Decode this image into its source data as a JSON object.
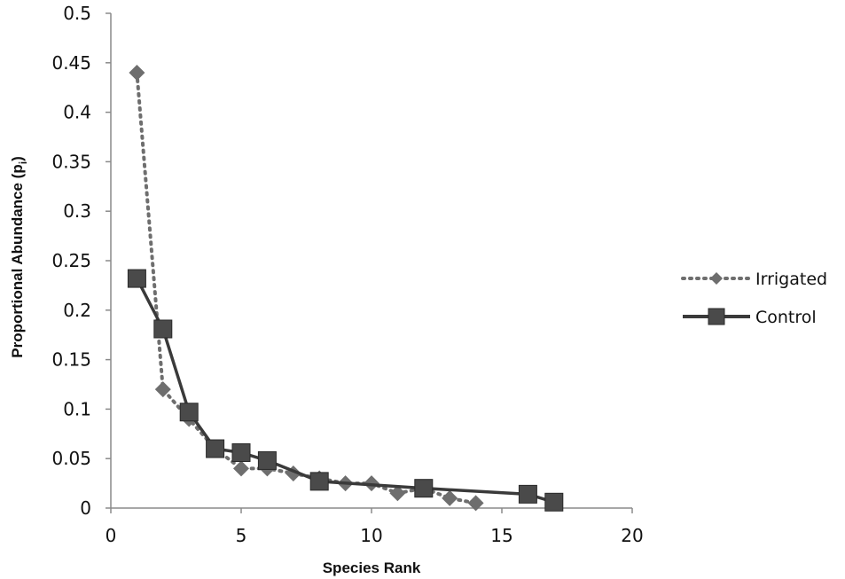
{
  "chart_data": {
    "type": "scatter",
    "xlabel": "Species Rank",
    "ylabel_main": "Proportional Abundance (p",
    "ylabel_sub": "i",
    "ylabel_close": ")",
    "xlim": [
      0,
      20
    ],
    "ylim": [
      0,
      0.5
    ],
    "xticks": [
      0,
      5,
      10,
      15,
      20
    ],
    "yticks": [
      "0",
      "0.05",
      "0.1",
      "0.15",
      "0.2",
      "0.25",
      "0.3",
      "0.35",
      "0.4",
      "0.45",
      "0.5"
    ],
    "grid": false,
    "legend_position": "right",
    "series": [
      {
        "name": "Irrigated",
        "marker": "diamond",
        "line": "dotted",
        "color": "#6e6e6e",
        "x": [
          1,
          2,
          3,
          4,
          5,
          6,
          7,
          8,
          9,
          10,
          11,
          12,
          13,
          14
        ],
        "y": [
          0.44,
          0.12,
          0.09,
          0.06,
          0.04,
          0.04,
          0.035,
          0.03,
          0.025,
          0.025,
          0.015,
          0.02,
          0.01,
          0.005
        ]
      },
      {
        "name": "Control",
        "marker": "square",
        "line": "solid",
        "color": "#3a3a3a",
        "x": [
          1,
          2,
          3,
          4,
          5,
          6,
          8,
          12,
          16,
          17
        ],
        "y": [
          0.232,
          0.181,
          0.097,
          0.06,
          0.056,
          0.048,
          0.027,
          0.02,
          0.014,
          0.006
        ]
      }
    ]
  }
}
